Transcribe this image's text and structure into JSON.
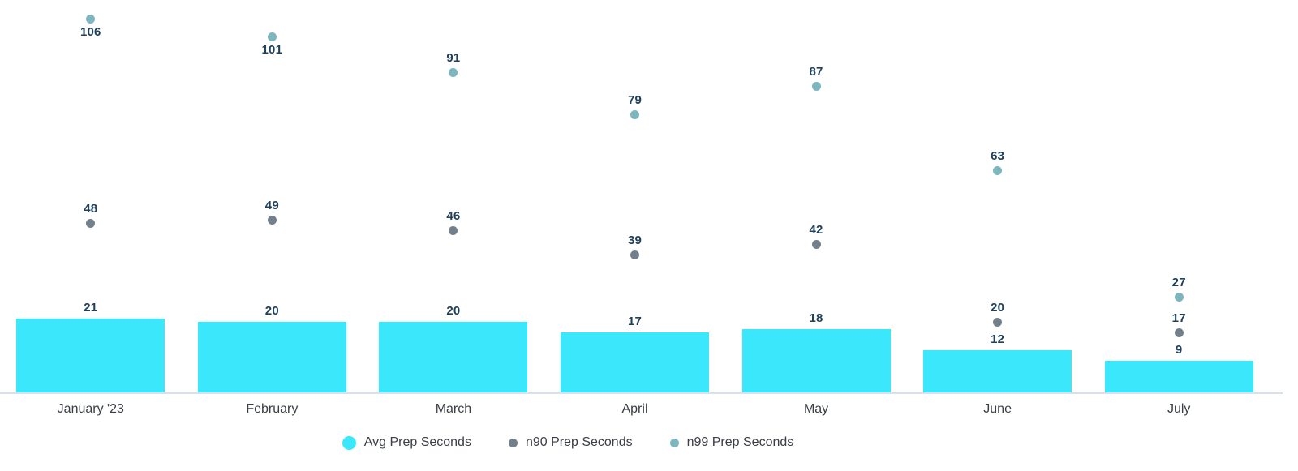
{
  "chart_data": {
    "type": "bar",
    "title": "",
    "xlabel": "",
    "ylabel": "",
    "categories": [
      "January '23",
      "February",
      "March",
      "April",
      "May",
      "June",
      "July"
    ],
    "series": [
      {
        "name": "Avg Prep Seconds",
        "render": "bar",
        "color": "#3be8fb",
        "values": [
          21,
          20,
          20,
          17,
          18,
          12,
          9
        ]
      },
      {
        "name": "n90 Prep Seconds",
        "render": "point",
        "color": "#72808c",
        "values": [
          48,
          49,
          46,
          39,
          42,
          20,
          17
        ]
      },
      {
        "name": "n99 Prep Seconds",
        "render": "point",
        "color": "#7db6bf",
        "values": [
          106,
          101,
          91,
          79,
          87,
          63,
          27
        ]
      }
    ],
    "ylim": [
      0,
      110
    ],
    "grid": false,
    "y_axis_visible": false,
    "data_labels": true,
    "legend_position": "bottom"
  },
  "colors": {
    "value_label": "#20415a",
    "axis_text": "#3a3e45",
    "axis_line": "#d9e0ec",
    "background": "#ffffff"
  }
}
